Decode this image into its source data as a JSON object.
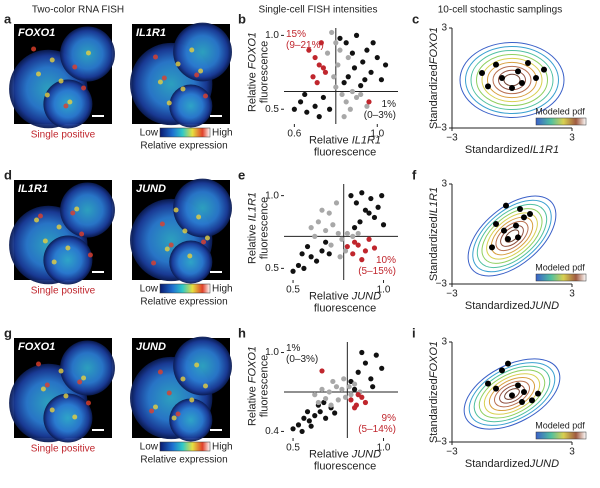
{
  "header": {
    "fish": "Two-color RNA FISH",
    "scatter": "Single-cell FISH intensities",
    "sampling": "10-cell stochastic samplings"
  },
  "rows": [
    {
      "panels": [
        "a",
        "b",
        "c"
      ],
      "images": {
        "labels": [
          "FOXO1",
          "IL1R1"
        ],
        "caption": "Single positive",
        "colorbar": {
          "low": "Low",
          "high": "High",
          "title": "Relative expression"
        }
      },
      "scatter": {
        "type": "scatter",
        "ylabel": [
          "Relative",
          "FOXO1",
          "fluorescence"
        ],
        "xlabel": [
          "Relative",
          "IL1R1",
          "fluorescence"
        ],
        "xlim": [
          0.55,
          1.1
        ],
        "ylim": [
          0.4,
          1.05
        ],
        "xticks": [
          0.6,
          {
            "value": 1,
            "label": "1.0"
          }
        ],
        "yticks": [
          0.5,
          {
            "value": 1,
            "label": "1.0"
          }
        ],
        "divider": {
          "x": 0.8,
          "y": 0.62
        },
        "annotations": [
          {
            "lines": [
              "15%",
              "(9–21%)"
            ],
            "color": "#c0262d",
            "corner": "top-left"
          },
          {
            "lines": [
              "1%",
              "(0–3%)"
            ],
            "color": "#222",
            "corner": "bottom-right"
          }
        ],
        "series": [
          {
            "color": "#111111",
            "x": [
              0.85,
              0.88,
              0.9,
              0.93,
              0.95,
              0.97,
              1.0,
              1.02,
              0.86,
              0.92,
              0.98,
              1.04,
              0.89,
              0.94,
              0.82,
              0.84,
              0.6,
              0.63,
              0.66,
              0.7,
              0.74,
              0.77,
              0.65,
              0.72
            ],
            "y": [
              0.95,
              0.88,
              1.0,
              0.82,
              0.9,
              0.75,
              0.85,
              0.7,
              0.72,
              0.66,
              0.95,
              0.8,
              0.78,
              0.7,
              0.98,
              0.68,
              0.5,
              0.55,
              0.48,
              0.52,
              0.58,
              0.5,
              0.6,
              0.45
            ]
          },
          {
            "color": "#a8a8a8",
            "x": [
              0.78,
              0.8,
              0.82,
              0.81,
              0.79,
              0.83,
              0.85,
              0.9,
              0.95,
              0.87,
              0.92,
              0.76,
              0.84,
              0.88,
              0.8,
              0.86
            ],
            "y": [
              1.02,
              0.95,
              0.9,
              0.8,
              0.72,
              0.6,
              0.55,
              0.58,
              0.52,
              0.5,
              0.6,
              0.88,
              0.45,
              0.62,
              0.65,
              0.85
            ]
          },
          {
            "color": "#c0262d",
            "x": [
              0.67,
              0.7,
              0.72,
              0.74,
              0.69,
              0.71,
              0.75,
              0.73,
              0.96
            ],
            "y": [
              0.9,
              0.85,
              0.8,
              0.78,
              0.72,
              0.68,
              0.75,
              0.95,
              0.55
            ]
          }
        ]
      },
      "contour": {
        "type": "contour",
        "ylabel": [
          "Standardized",
          "FOXO1"
        ],
        "xlabel": [
          "Standardized",
          "IL1R1"
        ],
        "legend": "Modeled pdf",
        "xlim": [
          -3,
          3
        ],
        "ylim": [
          -3,
          3
        ],
        "xticks": [
          {
            "value": -3,
            "label": "−3"
          },
          3
        ],
        "yticks": [
          {
            "value": -3,
            "label": "−3"
          },
          3
        ],
        "color": "#000000",
        "x": [
          -1.5,
          -1.2,
          -0.8,
          -0.5,
          0,
          0.3,
          0.8,
          1.2,
          1.6,
          0.5
        ],
        "y": [
          0.3,
          -0.5,
          0.8,
          0,
          -0.6,
          0.4,
          0.9,
          0,
          0.5,
          -0.3
        ]
      }
    },
    {
      "panels": [
        "d",
        "e",
        "f"
      ],
      "images": {
        "labels": [
          "IL1R1",
          "JUND"
        ],
        "caption": "Single positive",
        "colorbar": {
          "low": "Low",
          "high": "High",
          "title": "Relative expression"
        }
      },
      "scatter": {
        "type": "scatter",
        "ylabel": [
          "Relative",
          "IL1R1",
          "fluorescence"
        ],
        "xlabel": [
          "Relative",
          "JUND",
          "fluorescence"
        ],
        "xlim": [
          0.45,
          1.08
        ],
        "ylim": [
          0.42,
          1.08
        ],
        "xticks": [
          0.5,
          {
            "value": 1,
            "label": "1.0"
          }
        ],
        "yticks": [
          0.5,
          {
            "value": 1,
            "label": "1.0"
          }
        ],
        "divider": {
          "x": 0.78,
          "y": 0.72
        },
        "annotations": [
          {
            "lines": [
              "10%",
              "(5–15%)"
            ],
            "color": "#c0262d",
            "corner": "bottom-right"
          }
        ],
        "series": [
          {
            "color": "#111111",
            "x": [
              0.82,
              0.85,
              0.88,
              0.9,
              0.93,
              0.95,
              0.97,
              1.0,
              0.87,
              0.92,
              0.99,
              0.84,
              0.5,
              0.53,
              0.56,
              0.6,
              0.63,
              0.66,
              0.7,
              0.58,
              0.55,
              0.68
            ],
            "y": [
              1.0,
              0.95,
              1.02,
              0.9,
              0.98,
              0.85,
              0.92,
              0.8,
              0.82,
              0.88,
              1.0,
              0.78,
              0.48,
              0.52,
              0.5,
              0.58,
              0.55,
              0.62,
              0.6,
              0.65,
              0.6,
              0.68
            ]
          },
          {
            "color": "#a8a8a8",
            "x": [
              0.6,
              0.64,
              0.68,
              0.72,
              0.75,
              0.7,
              0.66,
              0.62,
              0.74,
              0.77,
              0.8,
              0.83,
              0.79,
              0.76,
              0.71,
              0.86
            ],
            "y": [
              0.78,
              0.82,
              0.76,
              0.8,
              0.74,
              0.88,
              0.9,
              0.72,
              0.95,
              0.7,
              0.74,
              0.72,
              0.62,
              0.58,
              0.66,
              0.74
            ]
          },
          {
            "color": "#c0262d",
            "x": [
              0.8,
              0.83,
              0.86,
              0.9,
              0.92,
              0.88,
              0.95,
              0.84
            ],
            "y": [
              0.65,
              0.6,
              0.66,
              0.62,
              0.7,
              0.56,
              0.64,
              0.68
            ]
          }
        ]
      },
      "contour": {
        "type": "contour",
        "ylabel": [
          "Standardized",
          "IL1R1"
        ],
        "xlabel": [
          "Standardized",
          "JUND"
        ],
        "legend": "Modeled pdf",
        "xlim": [
          -3,
          3
        ],
        "ylim": [
          -3,
          3
        ],
        "xticks": [
          {
            "value": -3,
            "label": "−3"
          },
          3
        ],
        "yticks": [
          {
            "value": -3,
            "label": "−3"
          },
          3
        ],
        "color": "#000000",
        "x": [
          -1,
          -0.8,
          -0.4,
          -0.2,
          0.2,
          0.4,
          0.6,
          0.9,
          0.3,
          -0.3
        ],
        "y": [
          -0.8,
          0.6,
          0.2,
          -0.3,
          0.5,
          1.5,
          1,
          1.2,
          -0.2,
          1.7
        ]
      }
    },
    {
      "panels": [
        "g",
        "h",
        "i"
      ],
      "images": {
        "labels": [
          "FOXO1",
          "JUND"
        ],
        "caption": "Single positive",
        "colorbar": {
          "low": "Low",
          "high": "High",
          "title": "Relative expression"
        }
      },
      "scatter": {
        "type": "scatter",
        "ylabel": [
          "Relative",
          "FOXO1",
          "fluorescence"
        ],
        "xlabel": [
          "Relative",
          "JUND",
          "fluorescence"
        ],
        "xlim": [
          0.45,
          1.08
        ],
        "ylim": [
          0.35,
          1.08
        ],
        "xticks": [
          0.5,
          {
            "value": 1,
            "label": "1.0"
          }
        ],
        "yticks": [
          0.4,
          {
            "value": 1,
            "label": "1.0"
          }
        ],
        "divider": {
          "x": 0.8,
          "y": 0.7
        },
        "annotations": [
          {
            "lines": [
              "1%",
              "(0–3%)"
            ],
            "color": "#222",
            "corner": "top-left"
          },
          {
            "lines": [
              "9%",
              "(5–14%)"
            ],
            "color": "#c0262d",
            "corner": "bottom-right"
          }
        ],
        "series": [
          {
            "color": "#111111",
            "x": [
              0.82,
              0.86,
              0.9,
              0.93,
              0.96,
              0.99,
              0.88,
              0.94,
              0.84,
              0.5,
              0.53,
              0.56,
              0.59,
              0.62,
              0.65,
              0.68,
              0.71,
              0.55,
              0.6,
              0.64,
              0.58,
              0.67,
              0.73
            ],
            "y": [
              0.78,
              0.85,
              0.92,
              0.8,
              0.98,
              0.88,
              1.0,
              0.74,
              0.72,
              0.42,
              0.45,
              0.5,
              0.48,
              0.52,
              0.55,
              0.5,
              0.58,
              0.4,
              0.44,
              0.6,
              0.55,
              0.62,
              0.54
            ]
          },
          {
            "color": "#a8a8a8",
            "x": [
              0.62,
              0.66,
              0.7,
              0.74,
              0.77,
              0.72,
              0.68,
              0.64,
              0.78,
              0.81,
              0.84,
              0.79,
              0.75,
              0.71,
              0.87,
              0.82
            ],
            "y": [
              0.68,
              0.72,
              0.7,
              0.74,
              0.72,
              0.78,
              0.65,
              0.62,
              0.8,
              0.74,
              0.76,
              0.66,
              0.64,
              0.6,
              0.7,
              0.68
            ]
          },
          {
            "color": "#c0262d",
            "x": [
              0.82,
              0.85,
              0.88,
              0.84,
              0.9,
              0.86,
              0.66
            ],
            "y": [
              0.64,
              0.6,
              0.66,
              0.58,
              0.62,
              0.68,
              0.86
            ]
          }
        ]
      },
      "contour": {
        "type": "contour",
        "ylabel": [
          "Standardized",
          "FOXO1"
        ],
        "xlabel": [
          "Standardized",
          "JUND"
        ],
        "legend": "Modeled pdf",
        "xlim": [
          -3,
          3
        ],
        "ylim": [
          -3,
          3
        ],
        "xticks": [
          {
            "value": -3,
            "label": "−3"
          },
          3
        ],
        "yticks": [
          {
            "value": -3,
            "label": "−3"
          },
          3
        ],
        "color": "#000000",
        "x": [
          -1.2,
          -0.8,
          -0.5,
          0,
          0.3,
          0.6,
          1,
          1.3,
          -0.2,
          0.5
        ],
        "y": [
          0.5,
          0.2,
          1.3,
          -0.2,
          0.4,
          0,
          -0.5,
          -0.1,
          1.7,
          -0.6
        ]
      }
    }
  ]
}
